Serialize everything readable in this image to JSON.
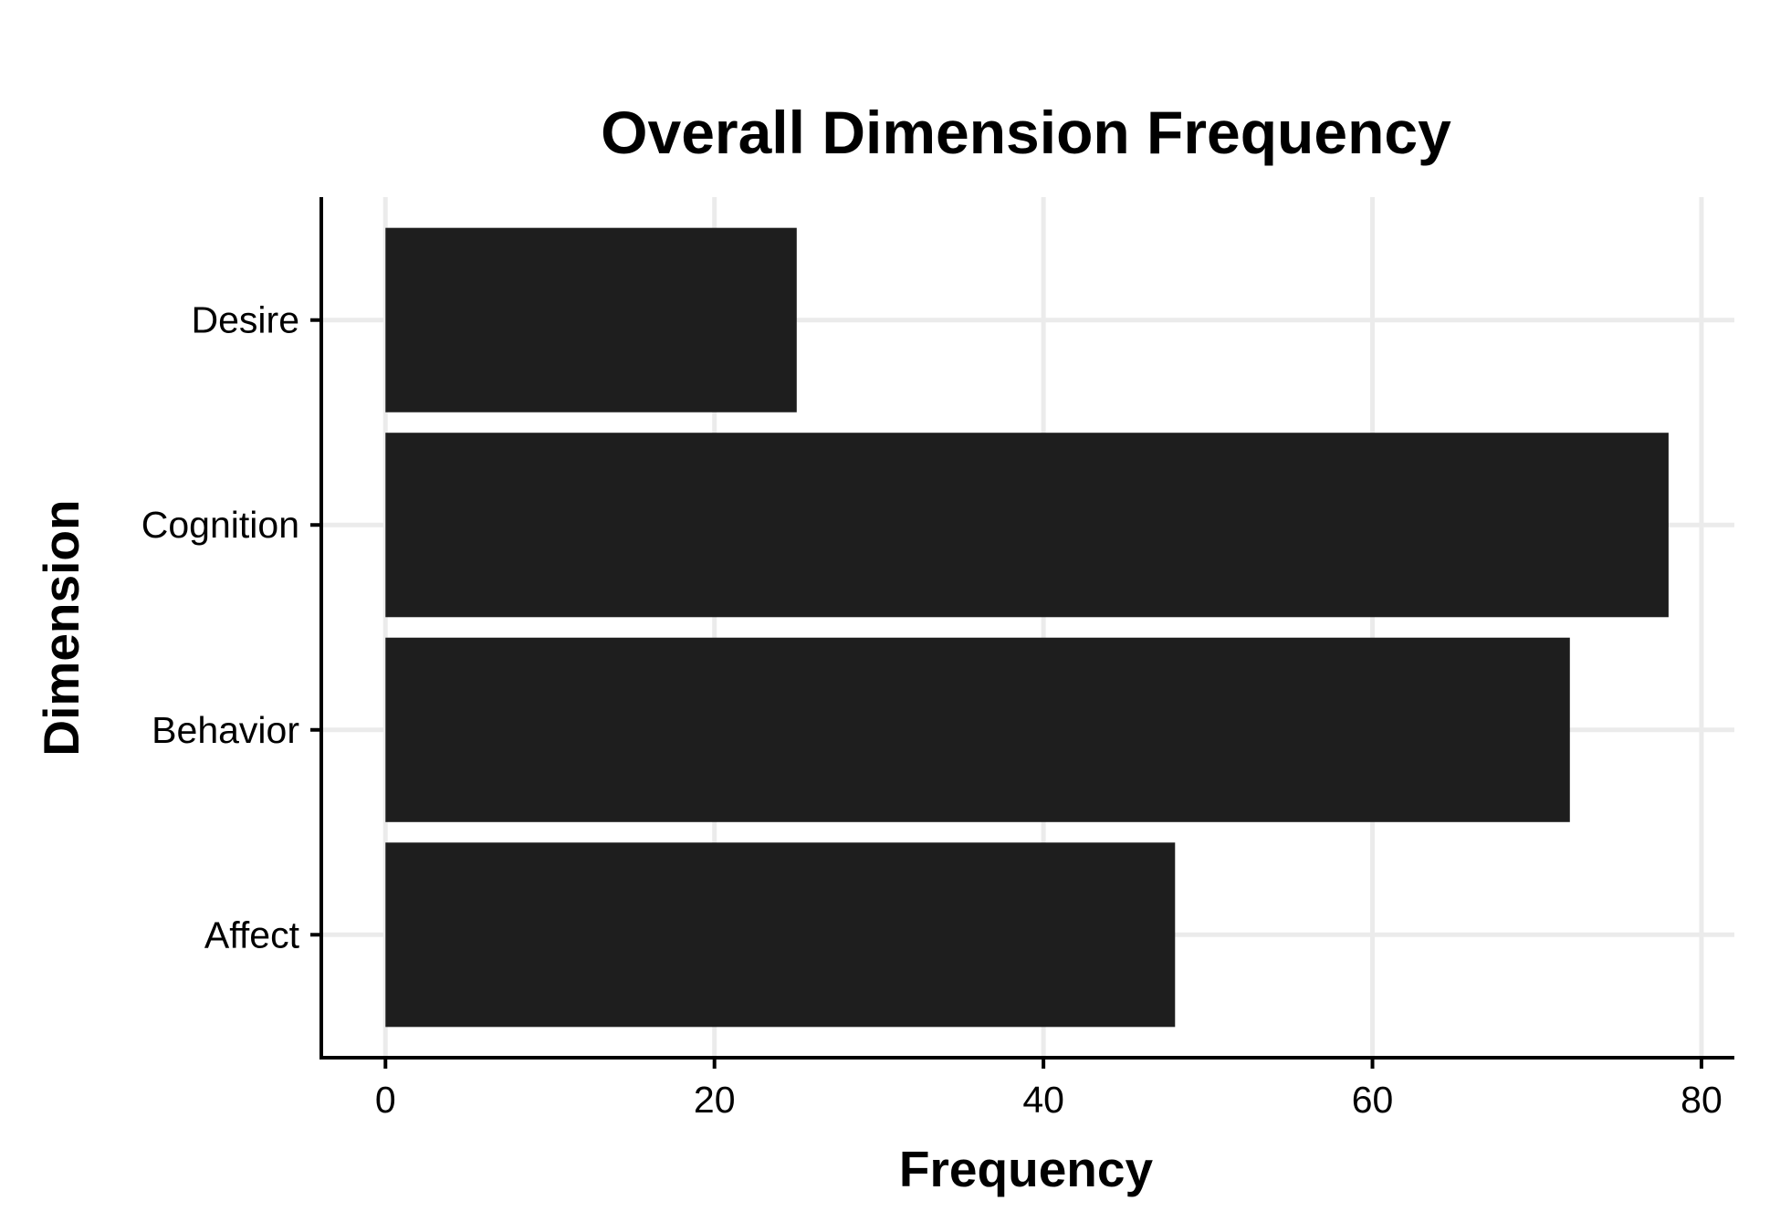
{
  "chart_data": {
    "type": "bar",
    "orientation": "horizontal",
    "title": "Overall Dimension Frequency",
    "xlabel": "Frequency",
    "ylabel": "Dimension",
    "categories": [
      "Affect",
      "Behavior",
      "Cognition",
      "Desire"
    ],
    "values": [
      48,
      72,
      78,
      25
    ],
    "xlim": [
      -3.9,
      82
    ],
    "xticks": [
      0,
      20,
      40,
      60,
      80
    ],
    "grid": true,
    "legend": "none",
    "colors": {
      "bar": "#1e1e1e",
      "grid": "#ebebeb",
      "axis": "#000000",
      "background": "#ffffff"
    }
  }
}
